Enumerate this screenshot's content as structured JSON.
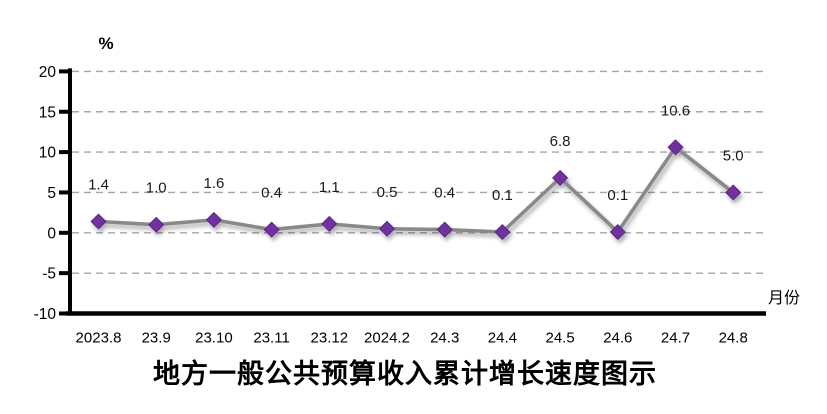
{
  "chart_data": {
    "type": "line",
    "title": "地方一般公共预算收入累计增长速度图示",
    "ylabel": "%",
    "xlabel": "月份",
    "categories": [
      "2023.8",
      "23.9",
      "23.10",
      "23.11",
      "23.12",
      "2024.2",
      "24.3",
      "24.4",
      "24.5",
      "24.6",
      "24.7",
      "24.8"
    ],
    "values": [
      1.4,
      1.0,
      1.6,
      0.4,
      1.1,
      0.5,
      0.4,
      0.1,
      6.8,
      0.1,
      10.6,
      5.0
    ],
    "data_labels": [
      "1.4",
      "1.0",
      "1.6",
      "0.4",
      "1.1",
      "0.5",
      "0.4",
      "0.1",
      "6.8",
      "0.1",
      "10.6",
      "5.0"
    ],
    "ylim": [
      -10,
      20
    ],
    "yticks": [
      -10,
      -5,
      0,
      5,
      10,
      15,
      20
    ],
    "grid": "horizontal-dashed",
    "legend": "none",
    "marker": "diamond",
    "colors": {
      "line": "#898989",
      "marker_fill": "#7030A0",
      "marker_border": "#5B2383",
      "grid": "#A6A6A6",
      "axis": "#000000",
      "tick_text": "#000000",
      "data_label_text": "#1A1A1A"
    }
  }
}
